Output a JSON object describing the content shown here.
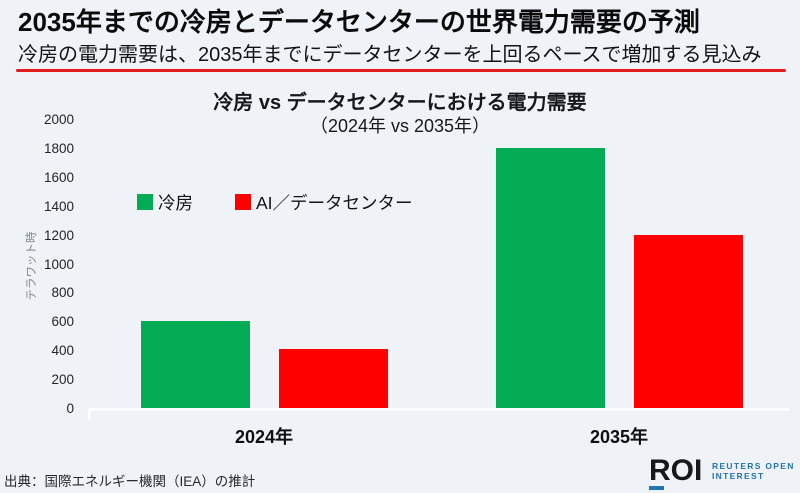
{
  "page": {
    "title": "2035年までの冷房とデータセンターの世界電力需要の予測",
    "subtitle": "冷房の電力需要は、2035年までにデータセンターを上回るペースで増加する見込み",
    "source": "出典：国際エネルギー機関（IEA）の推計"
  },
  "logo": {
    "abbr": "ROI",
    "line1": "REUTERS OPEN",
    "line2": "INTEREST"
  },
  "colors": {
    "background": "#EFF2F6",
    "title_text": "#0B0B0C",
    "subtitle_underline": "#E31B1C",
    "cooling_green": "#03AB55",
    "datacenter_red": "#FE0000",
    "axis_line": "#FBFCFD",
    "ylabel_gray": "#80878F",
    "logo_dark": "#17181A",
    "logo_blue": "#2273B1"
  },
  "chart_data": {
    "type": "bar",
    "title": "冷房 vs データセンターにおける電力需要",
    "subtitle": "（2024年 vs 2035年）",
    "ylabel": "テラワット時",
    "xlabel": "",
    "categories": [
      "2024年",
      "2035年"
    ],
    "series": [
      {
        "name": "冷房",
        "color": "#03AB55",
        "values": [
          600,
          1800
        ]
      },
      {
        "name": "AI／データセンター",
        "color": "#FE0000",
        "values": [
          410,
          1200
        ]
      }
    ],
    "ylim": [
      0,
      2000
    ],
    "yticks": [
      0,
      200,
      400,
      600,
      800,
      1000,
      1200,
      1400,
      1600,
      1800,
      2000
    ],
    "grid": false,
    "legend_position": "top-left",
    "unit": "TWh"
  }
}
